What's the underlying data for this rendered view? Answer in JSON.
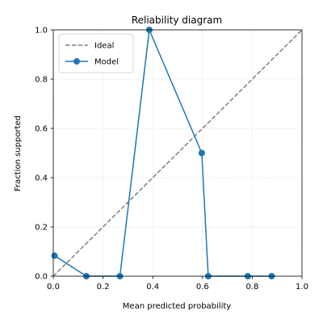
{
  "chart_data": {
    "type": "line",
    "title": "Reliability diagram",
    "xlabel": "Mean predicted probability",
    "ylabel": "Fraction supported",
    "xlim": [
      0,
      1
    ],
    "ylim": [
      0,
      1
    ],
    "x_ticks": [
      0,
      0.2,
      0.4,
      0.6,
      0.8,
      1
    ],
    "y_ticks": [
      0,
      0.2,
      0.4,
      0.6,
      0.8,
      1
    ],
    "x_tick_labels": [
      "0.0",
      "0.2",
      "0.4",
      "0.6",
      "0.8",
      "1.0"
    ],
    "y_tick_labels": [
      "0.0",
      "0.2",
      "0.4",
      "0.6",
      "0.8",
      "1.0"
    ],
    "grid": true,
    "legend_position": "top-left",
    "series": [
      {
        "name": "Ideal",
        "style": "dashed",
        "color": "#7f7f7f",
        "x": [
          0,
          1
        ],
        "y": [
          0,
          1
        ]
      },
      {
        "name": "Model",
        "style": "solid-with-markers",
        "color": "#1f77b4",
        "x": [
          0.005,
          0.133,
          0.268,
          0.386,
          0.597,
          0.623,
          0.782,
          0.878
        ],
        "y": [
          0.083,
          0.0,
          0.0,
          1.0,
          0.5,
          0.0,
          0.0,
          0.0
        ]
      }
    ]
  }
}
